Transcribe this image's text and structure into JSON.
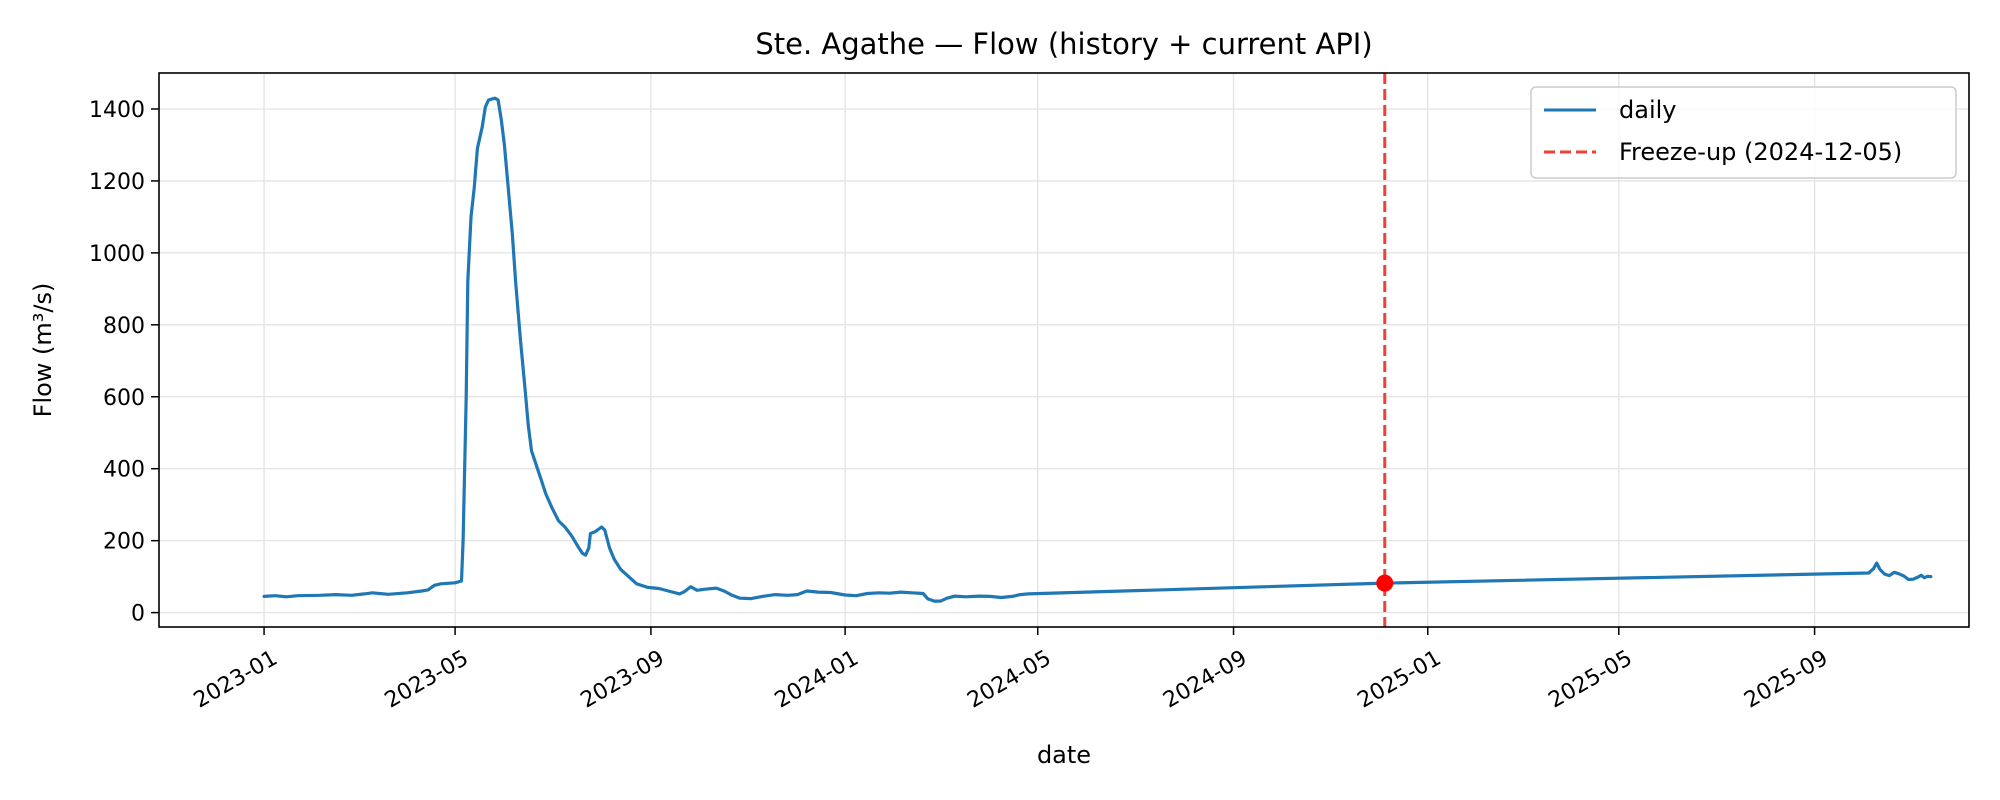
{
  "chart_data": {
    "type": "line",
    "title": "Ste. Agathe — Flow (history + current API)",
    "xlabel": "date",
    "ylabel": "Flow (m³/s)",
    "x_axis_type": "date",
    "xlim": [
      "2022-10-27",
      "2025-12-07"
    ],
    "ylim": [
      -40,
      1500
    ],
    "xticks": [
      "2023-01",
      "2023-05",
      "2023-09",
      "2024-01",
      "2024-05",
      "2024-09",
      "2025-01",
      "2025-05",
      "2025-09"
    ],
    "yticks": [
      0,
      200,
      400,
      600,
      800,
      1000,
      1200,
      1400
    ],
    "grid": true,
    "legend_position": "top-right",
    "series": [
      {
        "name": "daily",
        "color": "#1f77b4",
        "points": [
          [
            "2023-01-01",
            45
          ],
          [
            "2023-01-08",
            47
          ],
          [
            "2023-01-15",
            44
          ],
          [
            "2023-01-22",
            47
          ],
          [
            "2023-02-05",
            48
          ],
          [
            "2023-02-15",
            50
          ],
          [
            "2023-02-25",
            48
          ],
          [
            "2023-03-05",
            52
          ],
          [
            "2023-03-10",
            55
          ],
          [
            "2023-03-20",
            51
          ],
          [
            "2023-04-01",
            55
          ],
          [
            "2023-04-10",
            60
          ],
          [
            "2023-04-14",
            63
          ],
          [
            "2023-04-18",
            76
          ],
          [
            "2023-04-22",
            80
          ],
          [
            "2023-05-01",
            83
          ],
          [
            "2023-05-05",
            88
          ],
          [
            "2023-05-06",
            200
          ],
          [
            "2023-05-08",
            600
          ],
          [
            "2023-05-09",
            920
          ],
          [
            "2023-05-11",
            1100
          ],
          [
            "2023-05-13",
            1180
          ],
          [
            "2023-05-15",
            1290
          ],
          [
            "2023-05-18",
            1350
          ],
          [
            "2023-05-20",
            1405
          ],
          [
            "2023-05-22",
            1425
          ],
          [
            "2023-05-26",
            1430
          ],
          [
            "2023-05-28",
            1425
          ],
          [
            "2023-05-30",
            1370
          ],
          [
            "2023-06-01",
            1300
          ],
          [
            "2023-06-03",
            1200
          ],
          [
            "2023-06-06",
            1050
          ],
          [
            "2023-06-08",
            920
          ],
          [
            "2023-06-11",
            760
          ],
          [
            "2023-06-14",
            620
          ],
          [
            "2023-06-16",
            520
          ],
          [
            "2023-06-18",
            450
          ],
          [
            "2023-06-21",
            410
          ],
          [
            "2023-06-24",
            370
          ],
          [
            "2023-06-27",
            330
          ],
          [
            "2023-07-01",
            290
          ],
          [
            "2023-07-05",
            255
          ],
          [
            "2023-07-09",
            238
          ],
          [
            "2023-07-13",
            215
          ],
          [
            "2023-07-17",
            185
          ],
          [
            "2023-07-20",
            165
          ],
          [
            "2023-07-22",
            160
          ],
          [
            "2023-07-24",
            180
          ],
          [
            "2023-07-25",
            220
          ],
          [
            "2023-07-28",
            225
          ],
          [
            "2023-08-01",
            238
          ],
          [
            "2023-08-03",
            230
          ],
          [
            "2023-08-06",
            180
          ],
          [
            "2023-08-09",
            148
          ],
          [
            "2023-08-13",
            120
          ],
          [
            "2023-08-18",
            100
          ],
          [
            "2023-08-23",
            80
          ],
          [
            "2023-08-30",
            70
          ],
          [
            "2023-09-06",
            67
          ],
          [
            "2023-09-12",
            60
          ],
          [
            "2023-09-19",
            52
          ],
          [
            "2023-09-22",
            58
          ],
          [
            "2023-09-26",
            72
          ],
          [
            "2023-09-30",
            62
          ],
          [
            "2023-10-05",
            65
          ],
          [
            "2023-10-12",
            68
          ],
          [
            "2023-10-17",
            60
          ],
          [
            "2023-10-22",
            48
          ],
          [
            "2023-10-27",
            40
          ],
          [
            "2023-11-03",
            39
          ],
          [
            "2023-11-10",
            45
          ],
          [
            "2023-11-18",
            50
          ],
          [
            "2023-11-26",
            48
          ],
          [
            "2023-12-02",
            50
          ],
          [
            "2023-12-08",
            60
          ],
          [
            "2023-12-15",
            57
          ],
          [
            "2023-12-23",
            56
          ],
          [
            "2024-01-01",
            49
          ],
          [
            "2024-01-08",
            47
          ],
          [
            "2024-01-15",
            53
          ],
          [
            "2024-01-22",
            55
          ],
          [
            "2024-01-29",
            54
          ],
          [
            "2024-02-05",
            57
          ],
          [
            "2024-02-12",
            55
          ],
          [
            "2024-02-19",
            53
          ],
          [
            "2024-02-22",
            38
          ],
          [
            "2024-02-26",
            32
          ],
          [
            "2024-03-01",
            32
          ],
          [
            "2024-03-05",
            40
          ],
          [
            "2024-03-10",
            46
          ],
          [
            "2024-03-17",
            44
          ],
          [
            "2024-03-25",
            46
          ],
          [
            "2024-04-01",
            45
          ],
          [
            "2024-04-08",
            42
          ],
          [
            "2024-04-15",
            45
          ],
          [
            "2024-04-20",
            50
          ],
          [
            "2024-04-25",
            52
          ],
          [
            "2024-12-05",
            82
          ],
          [
            "2025-10-05",
            110
          ],
          [
            "2025-10-08",
            122
          ],
          [
            "2025-10-10",
            138
          ],
          [
            "2025-10-12",
            120
          ],
          [
            "2025-10-15",
            107
          ],
          [
            "2025-10-18",
            103
          ],
          [
            "2025-10-21",
            112
          ],
          [
            "2025-10-24",
            108
          ],
          [
            "2025-10-27",
            102
          ],
          [
            "2025-10-30",
            92
          ],
          [
            "2025-11-02",
            93
          ],
          [
            "2025-11-05",
            99
          ],
          [
            "2025-11-07",
            104
          ],
          [
            "2025-11-09",
            97
          ],
          [
            "2025-11-11",
            101
          ],
          [
            "2025-11-13",
            100
          ]
        ]
      },
      {
        "name": "Freeze-up (2024-12-05)",
        "color": "#f0403a",
        "style": "dashed",
        "vline_x": "2024-12-05"
      }
    ],
    "markers": [
      {
        "x": "2024-12-05",
        "y": 82,
        "color": "#ff0000"
      }
    ]
  }
}
